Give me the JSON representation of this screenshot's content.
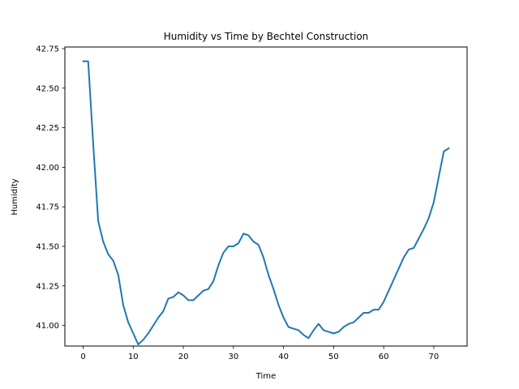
{
  "chart_data": {
    "type": "line",
    "title": "Humidity vs Time by Bechtel Construction",
    "xlabel": "Time",
    "ylabel": "Humidity",
    "xlim": [
      -3.65,
      76.65
    ],
    "ylim": [
      40.87,
      42.76
    ],
    "xticks": [
      0,
      10,
      20,
      30,
      40,
      50,
      60,
      70
    ],
    "xtick_labels": [
      "0",
      "10",
      "20",
      "30",
      "40",
      "50",
      "60",
      "70"
    ],
    "yticks": [
      41.0,
      41.25,
      41.5,
      41.75,
      42.0,
      42.25,
      42.5,
      42.75
    ],
    "ytick_labels": [
      "41.00",
      "41.25",
      "41.50",
      "41.75",
      "42.00",
      "42.25",
      "42.50",
      "42.75"
    ],
    "grid": false,
    "series": [
      {
        "color": "#1f77b4",
        "x": [
          0,
          1,
          2,
          3,
          4,
          5,
          6,
          7,
          8,
          9,
          10,
          11,
          12,
          13,
          14,
          15,
          16,
          17,
          18,
          19,
          20,
          21,
          22,
          23,
          24,
          25,
          26,
          27,
          28,
          29,
          30,
          31,
          32,
          33,
          34,
          35,
          36,
          37,
          38,
          39,
          40,
          41,
          42,
          43,
          44,
          45,
          46,
          47,
          48,
          49,
          50,
          51,
          52,
          53,
          54,
          55,
          56,
          57,
          58,
          59,
          60,
          61,
          62,
          63,
          64,
          65,
          66,
          67,
          68,
          69,
          70,
          71,
          72,
          73
        ],
        "y": [
          42.67,
          42.67,
          42.15,
          41.66,
          41.53,
          41.45,
          41.41,
          41.32,
          41.13,
          41.02,
          40.95,
          40.88,
          40.91,
          40.95,
          41.0,
          41.05,
          41.09,
          41.17,
          41.18,
          41.21,
          41.19,
          41.16,
          41.16,
          41.19,
          41.22,
          41.23,
          41.28,
          41.38,
          41.46,
          41.5,
          41.5,
          41.52,
          41.58,
          41.57,
          41.53,
          41.51,
          41.43,
          41.32,
          41.23,
          41.13,
          41.05,
          40.99,
          40.98,
          40.97,
          40.94,
          40.92,
          40.97,
          41.01,
          40.97,
          40.96,
          40.95,
          40.96,
          40.99,
          41.01,
          41.02,
          41.05,
          41.08,
          41.08,
          41.1,
          41.1,
          41.15,
          41.22,
          41.29,
          41.36,
          41.43,
          41.48,
          41.49,
          41.55,
          41.61,
          41.68,
          41.78,
          41.94,
          42.1,
          42.12
        ]
      }
    ]
  }
}
